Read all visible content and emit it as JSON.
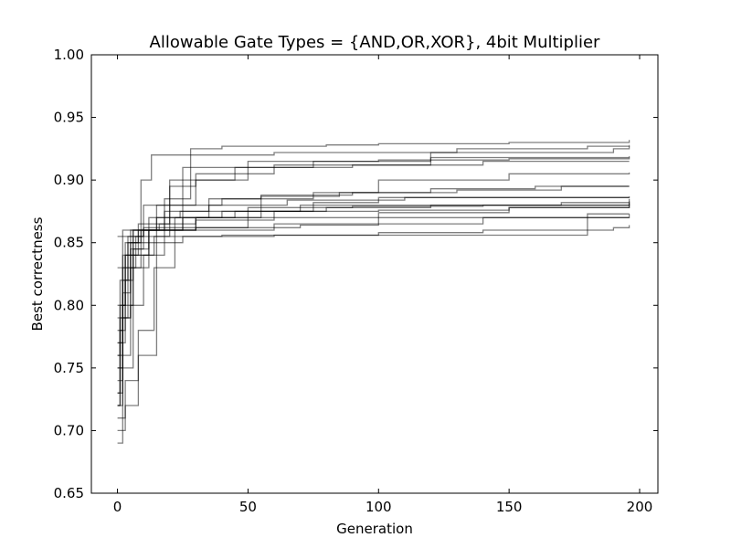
{
  "chart_data": {
    "type": "line",
    "title": "Allowable Gate Types = {AND,OR,XOR}, 4bit Multiplier",
    "xlabel": "Generation",
    "ylabel": "Best correctness",
    "xlim": [
      -10,
      207
    ],
    "ylim": [
      0.65,
      1.0
    ],
    "xticks": [
      0,
      50,
      100,
      150,
      200
    ],
    "xtick_labels": [
      "0",
      "50",
      "100",
      "150",
      "200"
    ],
    "yticks": [
      0.65,
      0.7,
      0.75,
      0.8,
      0.85,
      0.9,
      0.95,
      1.0
    ],
    "ytick_labels": [
      "0.65",
      "0.70",
      "0.75",
      "0.80",
      "0.85",
      "0.90",
      "0.95",
      "1.00"
    ],
    "grid": false,
    "line_color": "#000000",
    "series": [
      {
        "points": [
          [
            0,
            0.72
          ],
          [
            1,
            0.8
          ],
          [
            3,
            0.84
          ],
          [
            5,
            0.86
          ],
          [
            10,
            0.88
          ],
          [
            20,
            0.9
          ],
          [
            28,
            0.925
          ],
          [
            40,
            0.927
          ],
          [
            80,
            0.928
          ],
          [
            100,
            0.929
          ],
          [
            150,
            0.93
          ],
          [
            196,
            0.932
          ]
        ]
      },
      {
        "points": [
          [
            0,
            0.73
          ],
          [
            1,
            0.79
          ],
          [
            4,
            0.85
          ],
          [
            9,
            0.9
          ],
          [
            13,
            0.92
          ],
          [
            60,
            0.922
          ],
          [
            130,
            0.925
          ],
          [
            180,
            0.927
          ],
          [
            196,
            0.928
          ]
        ]
      },
      {
        "points": [
          [
            0,
            0.69
          ],
          [
            2,
            0.75
          ],
          [
            6,
            0.83
          ],
          [
            12,
            0.86
          ],
          [
            20,
            0.895
          ],
          [
            30,
            0.905
          ],
          [
            60,
            0.912
          ],
          [
            120,
            0.922
          ],
          [
            190,
            0.925
          ],
          [
            196,
            0.927
          ]
        ]
      },
      {
        "points": [
          [
            0,
            0.7
          ],
          [
            3,
            0.72
          ],
          [
            8,
            0.76
          ],
          [
            15,
            0.86
          ],
          [
            25,
            0.91
          ],
          [
            50,
            0.915
          ],
          [
            100,
            0.916
          ],
          [
            150,
            0.917
          ],
          [
            196,
            0.918
          ]
        ]
      },
      {
        "points": [
          [
            0,
            0.76
          ],
          [
            2,
            0.82
          ],
          [
            5,
            0.85
          ],
          [
            12,
            0.86
          ],
          [
            30,
            0.862
          ],
          [
            50,
            0.875
          ],
          [
            75,
            0.882
          ],
          [
            100,
            0.886
          ],
          [
            196,
            0.886
          ]
        ]
      },
      {
        "points": [
          [
            0,
            0.75
          ],
          [
            2,
            0.8
          ],
          [
            6,
            0.84
          ],
          [
            14,
            0.855
          ],
          [
            40,
            0.856
          ],
          [
            70,
            0.856
          ],
          [
            100,
            0.856
          ],
          [
            140,
            0.856
          ],
          [
            180,
            0.87
          ],
          [
            196,
            0.873
          ]
        ]
      },
      {
        "points": [
          [
            0,
            0.77
          ],
          [
            2,
            0.83
          ],
          [
            7,
            0.855
          ],
          [
            20,
            0.86
          ],
          [
            40,
            0.86
          ],
          [
            60,
            0.865
          ],
          [
            100,
            0.87
          ],
          [
            150,
            0.87
          ],
          [
            196,
            0.87
          ]
        ]
      },
      {
        "points": [
          [
            0,
            0.76
          ],
          [
            1,
            0.82
          ],
          [
            4,
            0.855
          ],
          [
            10,
            0.86
          ],
          [
            25,
            0.87
          ],
          [
            45,
            0.875
          ],
          [
            80,
            0.878
          ],
          [
            120,
            0.88
          ],
          [
            170,
            0.882
          ],
          [
            196,
            0.883
          ]
        ]
      },
      {
        "points": [
          [
            0,
            0.78
          ],
          [
            2,
            0.83
          ],
          [
            6,
            0.86
          ],
          [
            15,
            0.87
          ],
          [
            35,
            0.885
          ],
          [
            55,
            0.888
          ],
          [
            90,
            0.89
          ],
          [
            130,
            0.892
          ],
          [
            170,
            0.895
          ],
          [
            196,
            0.895
          ]
        ]
      },
      {
        "points": [
          [
            0,
            0.8
          ],
          [
            3,
            0.85
          ],
          [
            8,
            0.865
          ],
          [
            20,
            0.88
          ],
          [
            40,
            0.885
          ],
          [
            75,
            0.89
          ],
          [
            100,
            0.9
          ],
          [
            150,
            0.905
          ],
          [
            196,
            0.906
          ]
        ]
      },
      {
        "points": [
          [
            0,
            0.71
          ],
          [
            3,
            0.74
          ],
          [
            8,
            0.78
          ],
          [
            14,
            0.83
          ],
          [
            22,
            0.87
          ],
          [
            40,
            0.875
          ],
          [
            70,
            0.88
          ],
          [
            110,
            0.88
          ],
          [
            150,
            0.88
          ],
          [
            196,
            0.881
          ]
        ]
      },
      {
        "points": [
          [
            0,
            0.83
          ],
          [
            2,
            0.855
          ],
          [
            10,
            0.86
          ],
          [
            30,
            0.862
          ],
          [
            70,
            0.864
          ],
          [
            100,
            0.865
          ],
          [
            140,
            0.87
          ],
          [
            180,
            0.873
          ],
          [
            196,
            0.873
          ]
        ]
      },
      {
        "points": [
          [
            0,
            0.855
          ],
          [
            2,
            0.86
          ],
          [
            10,
            0.862
          ],
          [
            30,
            0.87
          ],
          [
            60,
            0.875
          ],
          [
            100,
            0.876
          ],
          [
            150,
            0.878
          ],
          [
            196,
            0.88
          ]
        ]
      },
      {
        "points": [
          [
            0,
            0.74
          ],
          [
            2,
            0.79
          ],
          [
            5,
            0.84
          ],
          [
            12,
            0.87
          ],
          [
            24,
            0.875
          ],
          [
            50,
            0.878
          ],
          [
            90,
            0.879
          ],
          [
            140,
            0.88
          ],
          [
            196,
            0.882
          ]
        ]
      },
      {
        "points": [
          [
            0,
            0.72
          ],
          [
            2,
            0.76
          ],
          [
            5,
            0.8
          ],
          [
            10,
            0.84
          ],
          [
            18,
            0.86
          ],
          [
            30,
            0.87
          ],
          [
            55,
            0.887
          ],
          [
            85,
            0.89
          ],
          [
            120,
            0.893
          ],
          [
            160,
            0.895
          ],
          [
            196,
            0.895
          ]
        ]
      },
      {
        "points": [
          [
            0,
            0.77
          ],
          [
            3,
            0.84
          ],
          [
            8,
            0.86
          ],
          [
            16,
            0.865
          ],
          [
            30,
            0.868
          ],
          [
            60,
            0.87
          ],
          [
            100,
            0.874
          ],
          [
            150,
            0.878
          ],
          [
            196,
            0.885
          ]
        ]
      },
      {
        "points": [
          [
            0,
            0.72
          ],
          [
            1,
            0.78
          ],
          [
            3,
            0.82
          ],
          [
            6,
            0.845
          ],
          [
            12,
            0.85
          ],
          [
            25,
            0.855
          ],
          [
            60,
            0.856
          ],
          [
            100,
            0.858
          ],
          [
            140,
            0.86
          ],
          [
            190,
            0.862
          ],
          [
            196,
            0.864
          ]
        ]
      },
      {
        "points": [
          [
            0,
            0.79
          ],
          [
            2,
            0.84
          ],
          [
            6,
            0.86
          ],
          [
            15,
            0.88
          ],
          [
            30,
            0.9
          ],
          [
            50,
            0.91
          ],
          [
            90,
            0.912
          ],
          [
            140,
            0.915
          ],
          [
            196,
            0.915
          ]
        ]
      },
      {
        "points": [
          [
            0,
            0.73
          ],
          [
            2,
            0.79
          ],
          [
            5,
            0.83
          ],
          [
            9,
            0.86
          ],
          [
            18,
            0.885
          ],
          [
            28,
            0.9
          ],
          [
            45,
            0.91
          ],
          [
            75,
            0.915
          ],
          [
            120,
            0.918
          ],
          [
            196,
            0.919
          ]
        ]
      },
      {
        "points": [
          [
            0,
            0.75
          ],
          [
            2,
            0.81
          ],
          [
            5,
            0.845
          ],
          [
            10,
            0.86
          ],
          [
            18,
            0.875
          ],
          [
            35,
            0.88
          ],
          [
            65,
            0.884
          ],
          [
            110,
            0.886
          ],
          [
            160,
            0.886
          ],
          [
            196,
            0.887
          ]
        ]
      }
    ]
  }
}
